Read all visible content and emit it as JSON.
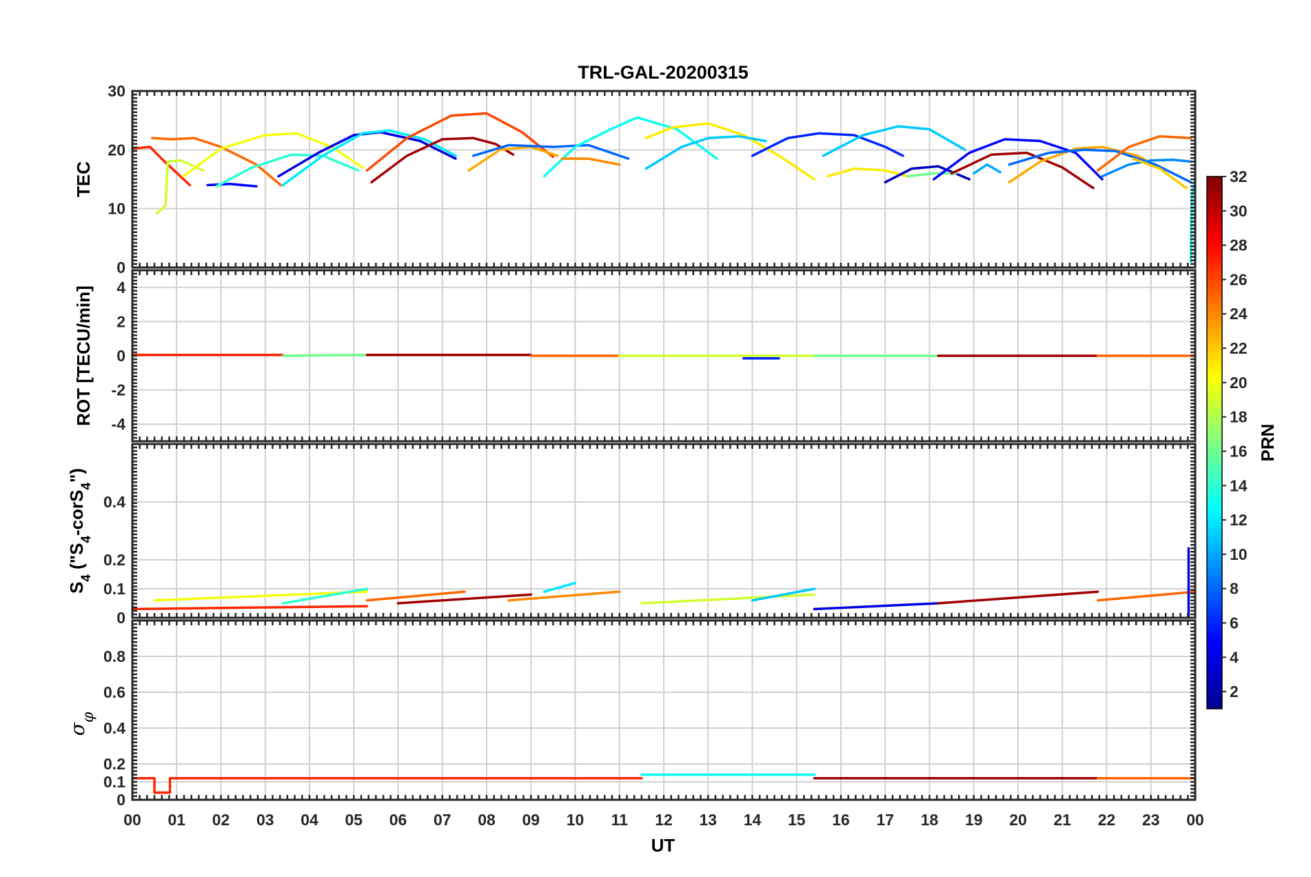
{
  "title": "TRL-GAL-20200315",
  "x_axis": {
    "label": "UT",
    "ticks": [
      "00",
      "01",
      "02",
      "03",
      "04",
      "05",
      "06",
      "07",
      "08",
      "09",
      "10",
      "11",
      "12",
      "13",
      "14",
      "15",
      "16",
      "17",
      "18",
      "19",
      "20",
      "21",
      "22",
      "23",
      "00"
    ]
  },
  "colorbar": {
    "label": "PRN",
    "colormap": "jet",
    "range": [
      1,
      32
    ],
    "ticks": [
      "2",
      "4",
      "6",
      "8",
      "10",
      "12",
      "14",
      "16",
      "18",
      "20",
      "22",
      "24",
      "26",
      "28",
      "30",
      "32"
    ]
  },
  "chart_data": [
    {
      "type": "line",
      "panel": "TEC",
      "ylabel": "TEC",
      "ylim": [
        0,
        30
      ],
      "yticks": [
        "0",
        "10",
        "20",
        "30"
      ],
      "grid": true,
      "x_unit": "hours UT",
      "series": [
        {
          "prn": 27,
          "x": [
            0.0,
            0.4,
            0.7,
            1.3
          ],
          "y": [
            20.2,
            20.5,
            18.2,
            14.0
          ]
        },
        {
          "prn": 19,
          "x": [
            0.55,
            0.75,
            0.8,
            1.1,
            1.6
          ],
          "y": [
            9.2,
            10.5,
            18.0,
            18.2,
            16.5
          ]
        },
        {
          "prn": 25,
          "x": [
            0.45,
            0.9,
            1.4,
            2.0,
            2.8,
            3.35
          ],
          "y": [
            22.0,
            21.8,
            22.0,
            20.5,
            17.5,
            14.0
          ]
        },
        {
          "prn": 20,
          "x": [
            1.15,
            2.0,
            3.0,
            3.7,
            4.5,
            5.2
          ],
          "y": [
            15.5,
            20.2,
            22.5,
            22.8,
            20.5,
            17.0
          ]
        },
        {
          "prn": 5,
          "x": [
            1.7,
            2.2,
            2.8
          ],
          "y": [
            14.0,
            14.2,
            13.8
          ]
        },
        {
          "prn": 14,
          "x": [
            1.9,
            2.7,
            3.6,
            4.3,
            5.1
          ],
          "y": [
            13.8,
            17.0,
            19.2,
            19.0,
            16.5
          ]
        },
        {
          "prn": 4,
          "x": [
            3.3,
            4.2,
            5.0,
            5.6,
            6.5,
            7.3
          ],
          "y": [
            15.5,
            19.5,
            22.5,
            23.0,
            21.5,
            18.5
          ]
        },
        {
          "prn": 12,
          "x": [
            3.4,
            4.3,
            5.2,
            5.8,
            6.6,
            7.3
          ],
          "y": [
            14.0,
            19.0,
            22.8,
            23.3,
            21.8,
            19.0
          ]
        },
        {
          "prn": 26,
          "x": [
            5.3,
            6.2,
            7.2,
            8.0,
            8.8,
            9.5
          ],
          "y": [
            16.5,
            22.0,
            25.8,
            26.2,
            23.0,
            18.8
          ]
        },
        {
          "prn": 31,
          "x": [
            5.4,
            6.2,
            7.0,
            7.7,
            8.2,
            8.6
          ],
          "y": [
            14.5,
            19.0,
            21.8,
            22.0,
            21.0,
            19.2
          ]
        },
        {
          "prn": 23,
          "x": [
            7.6,
            8.3,
            9.0,
            9.6
          ],
          "y": [
            16.5,
            20.0,
            20.5,
            19.0
          ]
        },
        {
          "prn": 8,
          "x": [
            7.7,
            8.5,
            9.5,
            10.3,
            11.2
          ],
          "y": [
            19.0,
            20.8,
            20.5,
            20.8,
            18.5
          ]
        },
        {
          "prn": 13,
          "x": [
            9.3,
            10.0,
            10.8,
            11.4,
            12.3,
            13.2
          ],
          "y": [
            15.5,
            20.5,
            23.5,
            25.5,
            23.5,
            18.5
          ]
        },
        {
          "prn": 24,
          "x": [
            9.7,
            10.3,
            11.0
          ],
          "y": [
            18.5,
            18.5,
            17.5
          ]
        },
        {
          "prn": 21,
          "x": [
            11.6,
            12.2,
            13.0,
            13.8,
            14.6,
            15.4
          ],
          "y": [
            22.0,
            23.8,
            24.5,
            22.5,
            19.0,
            15.0
          ]
        },
        {
          "prn": 11,
          "x": [
            11.6,
            12.4,
            13.0,
            13.7,
            14.3
          ],
          "y": [
            16.8,
            20.5,
            22.0,
            22.3,
            21.5
          ]
        },
        {
          "prn": 6,
          "x": [
            14.0,
            14.8,
            15.5,
            16.3,
            17.0,
            17.4
          ],
          "y": [
            19.0,
            22.0,
            22.8,
            22.5,
            20.5,
            19.0
          ]
        },
        {
          "prn": 11,
          "x": [
            15.6,
            16.5,
            17.3,
            18.0,
            18.8
          ],
          "y": [
            19.0,
            22.5,
            24.0,
            23.5,
            20.0
          ]
        },
        {
          "prn": 21,
          "x": [
            15.7,
            16.3,
            17.0,
            17.5
          ],
          "y": [
            15.5,
            16.8,
            16.5,
            15.5
          ]
        },
        {
          "prn": 3,
          "x": [
            17.0,
            17.6,
            18.2,
            18.9
          ],
          "y": [
            14.5,
            16.8,
            17.2,
            15.0
          ]
        },
        {
          "prn": 16,
          "x": [
            17.5,
            18.1,
            18.6
          ],
          "y": [
            15.5,
            16.0,
            16.0
          ]
        },
        {
          "prn": 5,
          "x": [
            18.1,
            18.9,
            19.7,
            20.5,
            21.3,
            21.9
          ],
          "y": [
            15.0,
            19.5,
            21.8,
            21.5,
            19.5,
            15.0
          ]
        },
        {
          "prn": 31,
          "x": [
            18.5,
            19.4,
            20.2,
            21.0,
            21.7
          ],
          "y": [
            16.0,
            19.2,
            19.5,
            17.0,
            13.5
          ]
        },
        {
          "prn": 10,
          "x": [
            19.0,
            19.3,
            19.6
          ],
          "y": [
            16.0,
            17.5,
            16.2
          ]
        },
        {
          "prn": 23,
          "x": [
            19.8,
            20.5,
            21.3,
            21.9,
            22.7,
            23.3
          ],
          "y": [
            14.5,
            18.0,
            20.2,
            20.5,
            19.0,
            16.5
          ]
        },
        {
          "prn": 8,
          "x": [
            19.8,
            20.7,
            21.5,
            22.2,
            23.1,
            23.9
          ],
          "y": [
            17.5,
            19.5,
            20.0,
            19.8,
            17.5,
            14.5
          ]
        },
        {
          "prn": 25,
          "x": [
            21.8,
            22.5,
            23.2,
            23.9
          ],
          "y": [
            16.5,
            20.5,
            22.3,
            22.0
          ]
        },
        {
          "prn": 9,
          "x": [
            21.9,
            22.5,
            23.0,
            23.5,
            23.9
          ],
          "y": [
            15.5,
            17.5,
            18.2,
            18.3,
            18.0
          ]
        },
        {
          "prn": 22,
          "x": [
            22.6,
            23.2,
            23.8
          ],
          "y": [
            18.5,
            16.8,
            13.5
          ]
        },
        {
          "prn": 13,
          "x": [
            23.9,
            23.92,
            24.0
          ],
          "y": [
            1.0,
            12.0,
            15.0
          ]
        }
      ]
    },
    {
      "type": "line",
      "panel": "ROT",
      "ylabel": "ROT [TECU/min]",
      "ylim": [
        -5,
        5
      ],
      "yticks": [
        "-4",
        "-2",
        "0",
        "2",
        "4"
      ],
      "grid": true,
      "series": [
        {
          "prn": 27,
          "x": [
            0.0,
            3.4
          ],
          "y": [
            0.05,
            0.05
          ]
        },
        {
          "prn": 16,
          "x": [
            3.4,
            5.3
          ],
          "y": [
            0.0,
            0.05
          ]
        },
        {
          "prn": 31,
          "x": [
            5.3,
            9.0
          ],
          "y": [
            0.05,
            0.05
          ]
        },
        {
          "prn": 25,
          "x": [
            9.0,
            11.0
          ],
          "y": [
            0.0,
            0.0
          ]
        },
        {
          "prn": 19,
          "x": [
            11.0,
            15.4
          ],
          "y": [
            0.0,
            0.0
          ]
        },
        {
          "prn": 6,
          "x": [
            13.8,
            14.6
          ],
          "y": [
            -0.15,
            -0.15
          ]
        },
        {
          "prn": 16,
          "x": [
            15.4,
            18.2
          ],
          "y": [
            0.0,
            0.0
          ]
        },
        {
          "prn": 31,
          "x": [
            18.2,
            21.8
          ],
          "y": [
            0.0,
            0.0
          ]
        },
        {
          "prn": 25,
          "x": [
            21.8,
            24.0
          ],
          "y": [
            0.0,
            0.0
          ]
        }
      ]
    },
    {
      "type": "line",
      "panel": "S4",
      "ylabel": "S4 (\"S4-corS4\")",
      "ylim": [
        0,
        0.6
      ],
      "yticks": [
        "0",
        "0.1",
        "0.2",
        "0.4"
      ],
      "grid": true,
      "series": [
        {
          "prn": 27,
          "x": [
            0.0,
            5.3
          ],
          "y": [
            0.03,
            0.04
          ]
        },
        {
          "prn": 20,
          "x": [
            0.5,
            5.3
          ],
          "y": [
            0.06,
            0.09
          ]
        },
        {
          "prn": 14,
          "x": [
            3.4,
            5.3
          ],
          "y": [
            0.05,
            0.1
          ]
        },
        {
          "prn": 25,
          "x": [
            5.3,
            7.5
          ],
          "y": [
            0.06,
            0.09
          ]
        },
        {
          "prn": 31,
          "x": [
            6.0,
            9.0
          ],
          "y": [
            0.05,
            0.08
          ]
        },
        {
          "prn": 24,
          "x": [
            8.5,
            11.0
          ],
          "y": [
            0.06,
            0.09
          ]
        },
        {
          "prn": 12,
          "x": [
            9.3,
            10.0
          ],
          "y": [
            0.09,
            0.12
          ]
        },
        {
          "prn": 19,
          "x": [
            11.5,
            15.4
          ],
          "y": [
            0.05,
            0.08
          ]
        },
        {
          "prn": 11,
          "x": [
            14.0,
            15.4
          ],
          "y": [
            0.06,
            0.1
          ]
        },
        {
          "prn": 4,
          "x": [
            15.4,
            18.2
          ],
          "y": [
            0.03,
            0.05
          ]
        },
        {
          "prn": 31,
          "x": [
            18.2,
            21.8
          ],
          "y": [
            0.05,
            0.09
          ]
        },
        {
          "prn": 25,
          "x": [
            21.8,
            24.0
          ],
          "y": [
            0.06,
            0.09
          ]
        },
        {
          "prn": 4,
          "x": [
            23.85,
            23.85
          ],
          "y": [
            0.0,
            0.24
          ]
        }
      ]
    },
    {
      "type": "line",
      "panel": "sigma_phi",
      "ylabel": "σφ",
      "ylim": [
        0,
        1
      ],
      "yticks": [
        "0",
        "0.1",
        "0.2",
        "0.4",
        "0.6",
        "0.8"
      ],
      "grid": true,
      "series": [
        {
          "prn": 27,
          "x": [
            0.0,
            0.5,
            0.5,
            0.85,
            0.85,
            11.5
          ],
          "y": [
            0.12,
            0.12,
            0.04,
            0.04,
            0.12,
            0.12
          ]
        },
        {
          "prn": 13,
          "x": [
            11.5,
            15.4
          ],
          "y": [
            0.14,
            0.14
          ]
        },
        {
          "prn": 31,
          "x": [
            15.4,
            21.8
          ],
          "y": [
            0.12,
            0.12
          ]
        },
        {
          "prn": 25,
          "x": [
            21.8,
            24.0
          ],
          "y": [
            0.12,
            0.12
          ]
        }
      ]
    }
  ]
}
